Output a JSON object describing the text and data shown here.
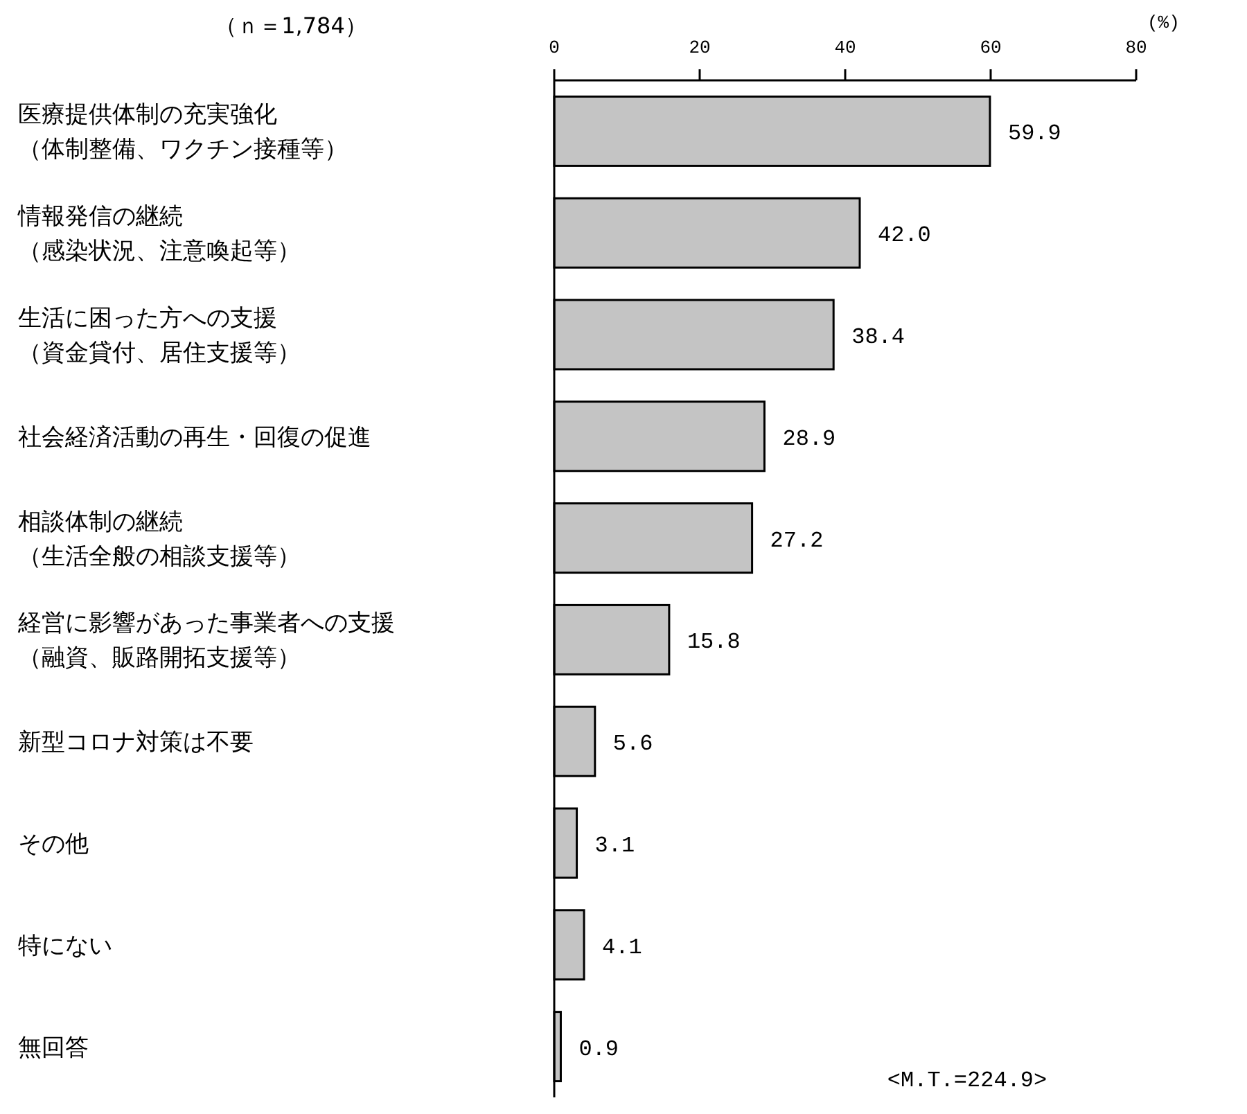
{
  "chart_data": {
    "type": "bar",
    "orientation": "horizontal",
    "subtitle": "（ｎ＝1,784）",
    "xlabel": "(%)",
    "categories": [
      "医療提供体制の充実強化（体制整備、ワクチン接種等）",
      "情報発信の継続（感染状況、注意喚起等）",
      "生活に困った方への支援（資金貸付、居住支援等）",
      "社会経済活動の再生・回復の促進",
      "相談体制の継続（生活全般の相談支援等）",
      "経営に影響があった事業者への支援（融資、販路開拓支援等）",
      "新型コロナ対策は不要",
      "その他",
      "特にない",
      "無回答"
    ],
    "values": [
      59.9,
      42.0,
      38.4,
      28.9,
      27.2,
      15.8,
      5.6,
      3.1,
      4.1,
      0.9
    ],
    "value_labels": [
      "59.9",
      "42.0",
      "38.4",
      "28.9",
      "27.2",
      "15.8",
      "5.6",
      "3.1",
      "4.1",
      "0.9"
    ],
    "color": "#c4c4c4",
    "xlim": [
      0,
      80
    ],
    "xticks": [
      0,
      20,
      40,
      60,
      80
    ],
    "annotations": [
      "<M.T.=224.9>"
    ]
  }
}
